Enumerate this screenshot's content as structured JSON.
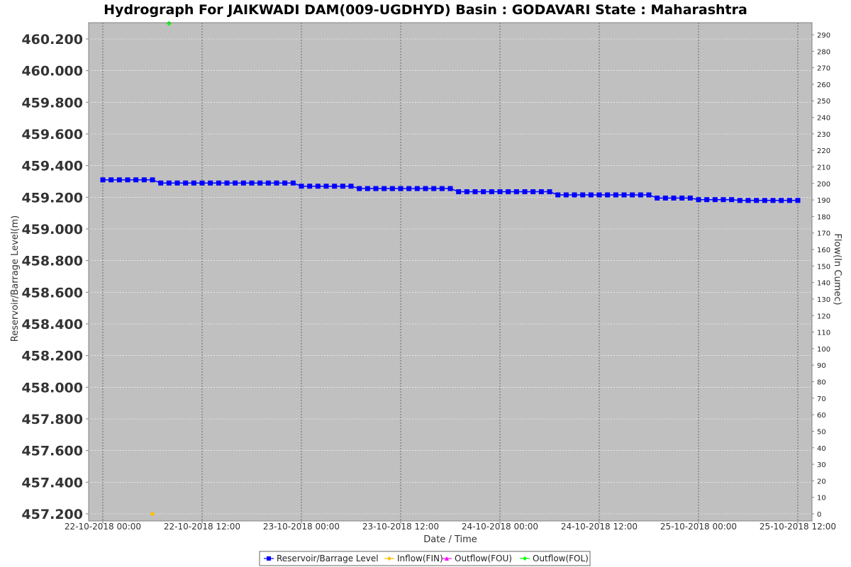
{
  "chart_data": {
    "type": "line",
    "title": "Hydrograph For JAIKWADI DAM(009-UGDHYD) Basin : GODAVARI State : Maharashtra",
    "xlabel": "Date / Time",
    "ylabel": "Reservoir/Barrage Level(m)",
    "y2label": "Flow(In Cumec)",
    "ylim": [
      457.2,
      460.2
    ],
    "y2lim": [
      0,
      290
    ],
    "x_range": [
      "2018-10-22 00:00",
      "2018-10-25 12:00"
    ],
    "grid": true,
    "legend_position": "bottom",
    "y_ticks": [
      "457.200",
      "457.400",
      "457.600",
      "457.800",
      "458.000",
      "458.200",
      "458.400",
      "458.600",
      "458.800",
      "459.000",
      "459.200",
      "459.400",
      "459.600",
      "459.800",
      "460.000",
      "460.200"
    ],
    "y2_ticks": [
      "0",
      "10",
      "20",
      "30",
      "40",
      "50",
      "60",
      "70",
      "80",
      "90",
      "100",
      "110",
      "120",
      "130",
      "140",
      "150",
      "160",
      "170",
      "180",
      "190",
      "200",
      "210",
      "220",
      "230",
      "240",
      "250",
      "260",
      "270",
      "280",
      "290"
    ],
    "x_ticks": [
      {
        "label": "22-10-2018 00:00",
        "at": "2018-10-22 00:00"
      },
      {
        "label": "22-10-2018 12:00",
        "at": "2018-10-22 12:00"
      },
      {
        "label": "23-10-2018 00:00",
        "at": "2018-10-23 00:00"
      },
      {
        "label": "23-10-2018 12:00",
        "at": "2018-10-23 12:00"
      },
      {
        "label": "24-10-2018 00:00",
        "at": "2018-10-24 00:00"
      },
      {
        "label": "24-10-2018 12:00",
        "at": "2018-10-24 12:00"
      },
      {
        "label": "25-10-2018 00:00",
        "at": "2018-10-25 00:00"
      },
      {
        "label": "25-10-2018 12:00",
        "at": "2018-10-25 12:00"
      }
    ],
    "series": [
      {
        "name": "Reservoir/Barrage Level",
        "axis": "left",
        "color": "#0000ff",
        "marker": "square",
        "line": true,
        "start": "2018-10-22 00:00",
        "interval_hours": 1,
        "values": [
          459.31,
          459.31,
          459.31,
          459.31,
          459.31,
          459.31,
          459.31,
          459.29,
          459.29,
          459.29,
          459.29,
          459.29,
          459.29,
          459.29,
          459.29,
          459.29,
          459.29,
          459.29,
          459.29,
          459.29,
          459.29,
          459.29,
          459.29,
          459.29,
          459.27,
          459.27,
          459.27,
          459.27,
          459.27,
          459.27,
          459.27,
          459.255,
          459.255,
          459.255,
          459.255,
          459.255,
          459.255,
          459.255,
          459.255,
          459.255,
          459.255,
          459.255,
          459.255,
          459.235,
          459.235,
          459.235,
          459.235,
          459.235,
          459.235,
          459.235,
          459.235,
          459.235,
          459.235,
          459.235,
          459.235,
          459.215,
          459.215,
          459.215,
          459.215,
          459.215,
          459.215,
          459.215,
          459.215,
          459.215,
          459.215,
          459.215,
          459.215,
          459.195,
          459.195,
          459.195,
          459.195,
          459.195,
          459.185,
          459.185,
          459.185,
          459.185,
          459.185,
          459.18,
          459.18,
          459.18,
          459.18,
          459.18,
          459.18,
          459.18,
          459.18
        ]
      },
      {
        "name": "Inflow(FIN)",
        "axis": "right",
        "color": "#ffc000",
        "marker": "diamond",
        "line": false,
        "points": [
          {
            "x": "2018-10-22 06:00",
            "y": 0
          }
        ]
      },
      {
        "name": "Outflow(FOU)",
        "axis": "right",
        "color": "#ff00ff",
        "marker": "triangle",
        "line": false,
        "points": []
      },
      {
        "name": "Outflow(FOL)",
        "axis": "right",
        "color": "#00ff00",
        "marker": "diamond",
        "line": false,
        "points": [
          {
            "x": "2018-10-22 08:00",
            "y": 297
          }
        ]
      }
    ]
  }
}
